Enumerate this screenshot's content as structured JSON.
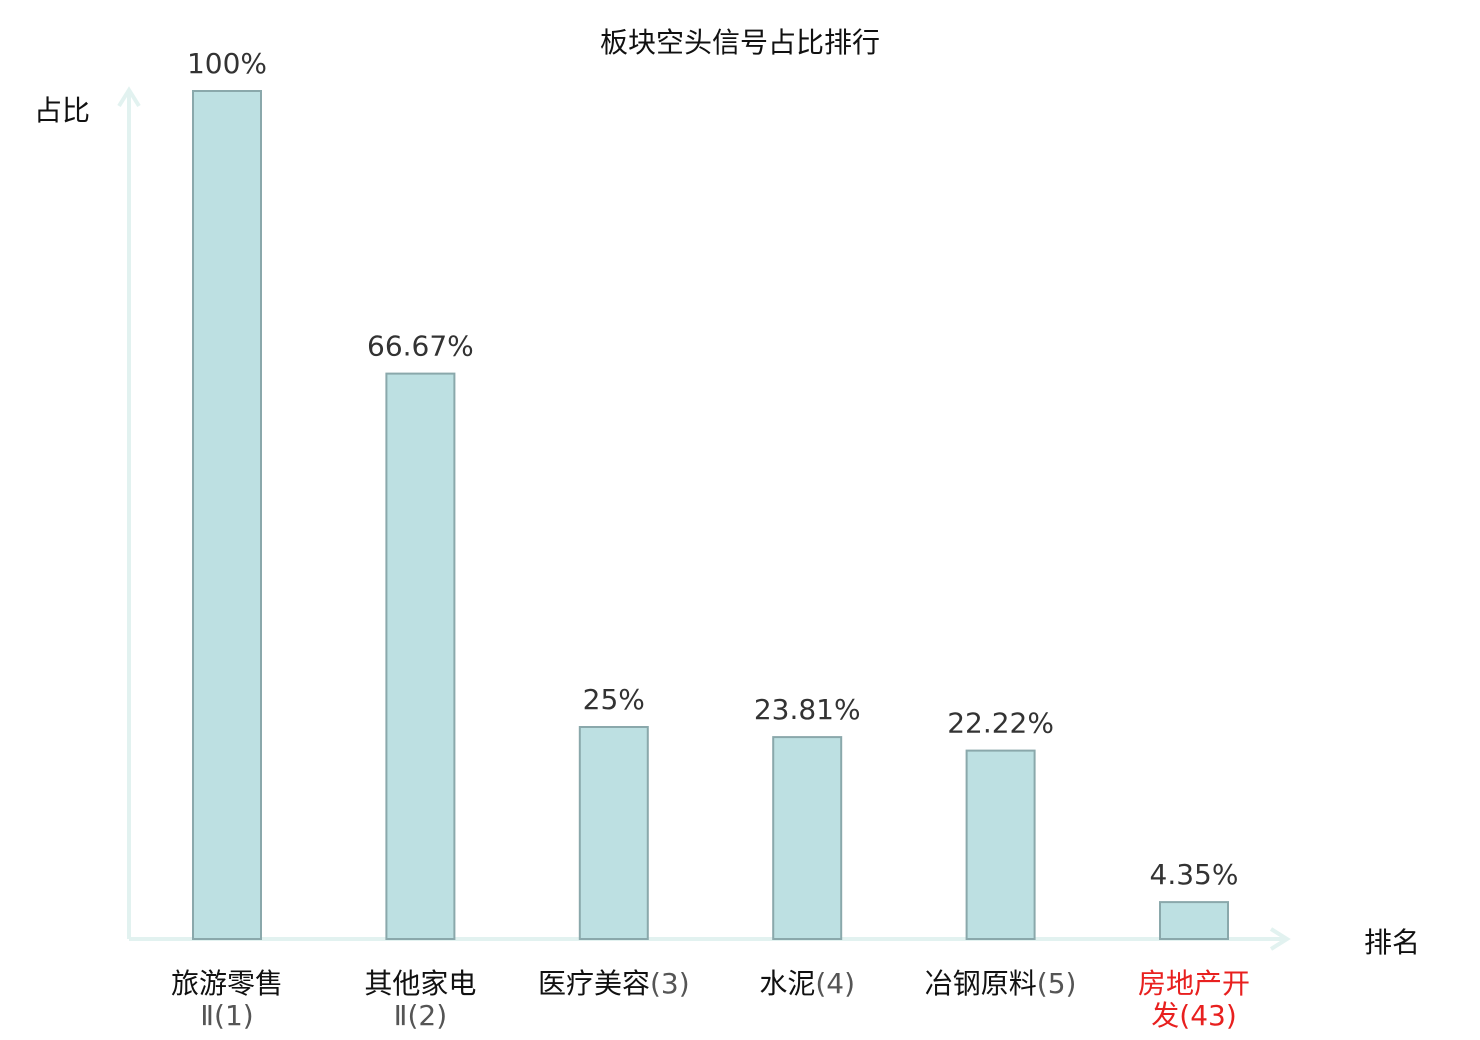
{
  "colors": {
    "bar_fill": "#bde0e2",
    "bar_stroke": "#8aa8ab",
    "axis": "#e2f2f0",
    "text": "#111111",
    "highlight": "#e8201f",
    "number_text": "#555555"
  },
  "chart_data": {
    "type": "bar",
    "title": "板块空头信号占比排行",
    "ylabel": "占比",
    "xlabel": "排名",
    "ylim": [
      0,
      100
    ],
    "grid": false,
    "legend": "none",
    "categories": [
      {
        "line1": "旅游零售",
        "line2_name": "Ⅱ",
        "rank": "(1)",
        "highlight": false
      },
      {
        "line1": "其他家电",
        "line2_name": "Ⅱ",
        "rank": "(2)",
        "highlight": false
      },
      {
        "line1": "医疗美容",
        "line2_name": "",
        "rank": "(3)",
        "highlight": false
      },
      {
        "line1": "水泥",
        "line2_name": "",
        "rank": "(4)",
        "highlight": false
      },
      {
        "line1": "冶钢原料",
        "line2_name": "",
        "rank": "(5)",
        "highlight": false
      },
      {
        "line1": "房地产开",
        "line2_name": "发",
        "rank": "(43)",
        "highlight": true
      }
    ],
    "values": [
      100,
      66.67,
      25,
      23.81,
      22.22,
      4.35
    ],
    "value_labels": [
      "100%",
      "66.67%",
      "25%",
      "23.81%",
      "22.22%",
      "4.35%"
    ]
  }
}
